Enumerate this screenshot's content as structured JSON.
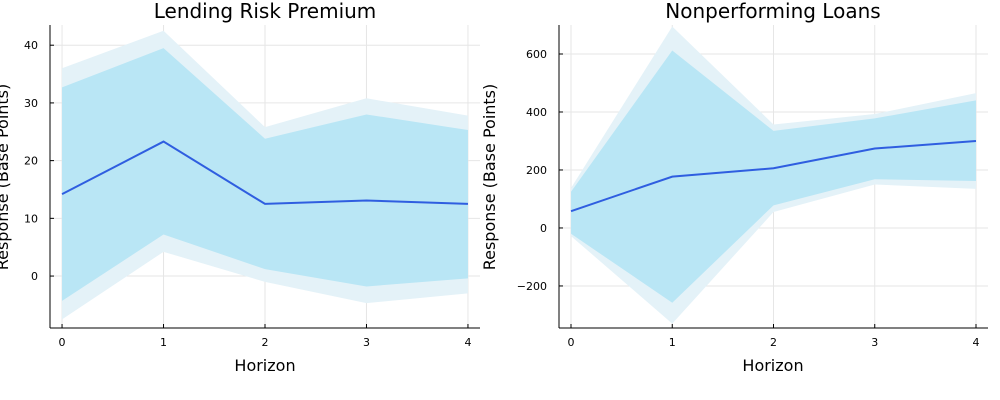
{
  "chart_data": [
    {
      "type": "line",
      "title": "Lending Risk Premium",
      "xlabel": "Horizon",
      "ylabel": "Response (Base Points)",
      "x": [
        0,
        1,
        2,
        3,
        4
      ],
      "xticks": [
        "0",
        "1",
        "2",
        "3",
        "4"
      ],
      "yticks": [
        "0",
        "10",
        "20",
        "30",
        "40"
      ],
      "ylim": [
        -9,
        43.5
      ],
      "grid": true,
      "series": [
        {
          "role": "median",
          "values": [
            14.2,
            23.3,
            12.5,
            13.1,
            12.5
          ]
        },
        {
          "role": "inner-band-upper",
          "values": [
            32.7,
            39.5,
            23.8,
            28.0,
            25.3
          ]
        },
        {
          "role": "inner-band-lower",
          "values": [
            -4.3,
            7.2,
            1.2,
            -1.8,
            -0.4
          ]
        },
        {
          "role": "outer-band-upper",
          "values": [
            36.0,
            42.5,
            25.8,
            30.8,
            27.8
          ]
        },
        {
          "role": "outer-band-lower",
          "values": [
            -7.5,
            4.2,
            -1.0,
            -4.7,
            -3.0
          ]
        }
      ]
    },
    {
      "type": "line",
      "title": "Nonperforming Loans",
      "xlabel": "Horizon",
      "ylabel": "Response (Base Points)",
      "x": [
        0,
        1,
        2,
        3,
        4
      ],
      "xticks": [
        "0",
        "1",
        "2",
        "3",
        "4"
      ],
      "yticks": [
        "−200",
        "0",
        "200",
        "400",
        "600"
      ],
      "ylim": [
        -345,
        700
      ],
      "grid": true,
      "series": [
        {
          "role": "median",
          "values": [
            58,
            177,
            206,
            274,
            300
          ]
        },
        {
          "role": "inner-band-upper",
          "values": [
            125,
            612,
            335,
            378,
            440
          ]
        },
        {
          "role": "inner-band-lower",
          "values": [
            -20,
            -258,
            78,
            168,
            162
          ]
        },
        {
          "role": "outer-band-upper",
          "values": [
            138,
            695,
            357,
            393,
            465
          ]
        },
        {
          "role": "outer-band-lower",
          "values": [
            -28,
            -330,
            55,
            150,
            135
          ]
        }
      ]
    }
  ],
  "colors": {
    "median_line": "#2f5ee0",
    "inner_band": "#b9e6f5",
    "outer_band": "#e4f2f8"
  }
}
